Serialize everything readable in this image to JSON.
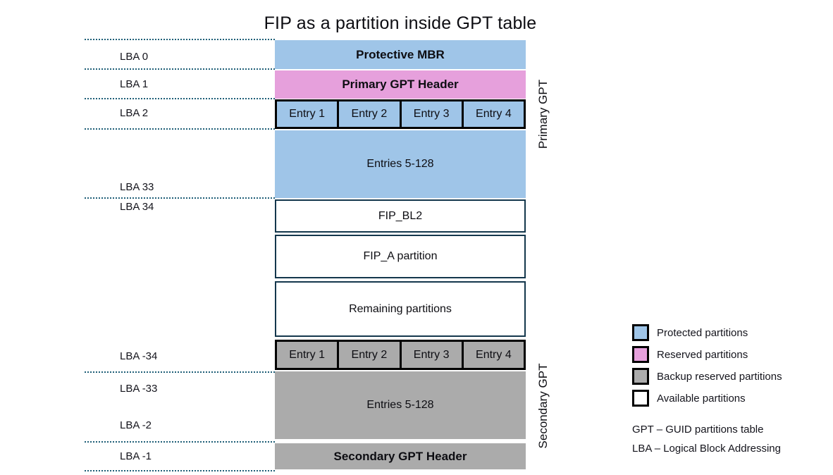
{
  "title": "FIP as a partition inside GPT table",
  "colors": {
    "protected": "#9FC5E8",
    "reserved": "#E6A0DC",
    "backup": "#ABABAB",
    "available": "#FFFFFF",
    "dotted_line": "#1F5F78",
    "available_border": "#14374C",
    "entry_border": "#000000"
  },
  "lba_labels": [
    {
      "text": "LBA 0"
    },
    {
      "text": "LBA 1"
    },
    {
      "text": "LBA 2"
    },
    {
      "text": "LBA 33"
    },
    {
      "text": "LBA 34"
    },
    {
      "text": "LBA -34"
    },
    {
      "text": "LBA -33"
    },
    {
      "text": "LBA -2"
    },
    {
      "text": "LBA -1"
    }
  ],
  "blocks": {
    "protective_mbr": "Protective MBR",
    "primary_gpt_header": "Primary GPT Header",
    "primary_entries": [
      "Entry 1",
      "Entry 2",
      "Entry 3",
      "Entry 4"
    ],
    "primary_entries_rest": "Entries 5-128",
    "fip_bl2": "FIP_BL2",
    "fip_a": "FIP_A partition",
    "remaining": "Remaining partitions",
    "secondary_entries": [
      "Entry 1",
      "Entry 2",
      "Entry 3",
      "Entry 4"
    ],
    "secondary_entries_rest": "Entries 5-128",
    "secondary_gpt_header": "Secondary GPT Header"
  },
  "sections": {
    "primary_label": "Primary GPT",
    "secondary_label": "Secondary GPT"
  },
  "legend": {
    "items": [
      {
        "label": "Protected partitions",
        "color": "#9FC5E8"
      },
      {
        "label": "Reserved partitions",
        "color": "#E6A0DC"
      },
      {
        "label": "Backup reserved partitions",
        "color": "#ABABAB"
      },
      {
        "label": "Available partitions",
        "color": "#FFFFFF"
      }
    ],
    "notes": [
      "GPT – GUID partitions table",
      "LBA – Logical Block Addressing"
    ]
  }
}
